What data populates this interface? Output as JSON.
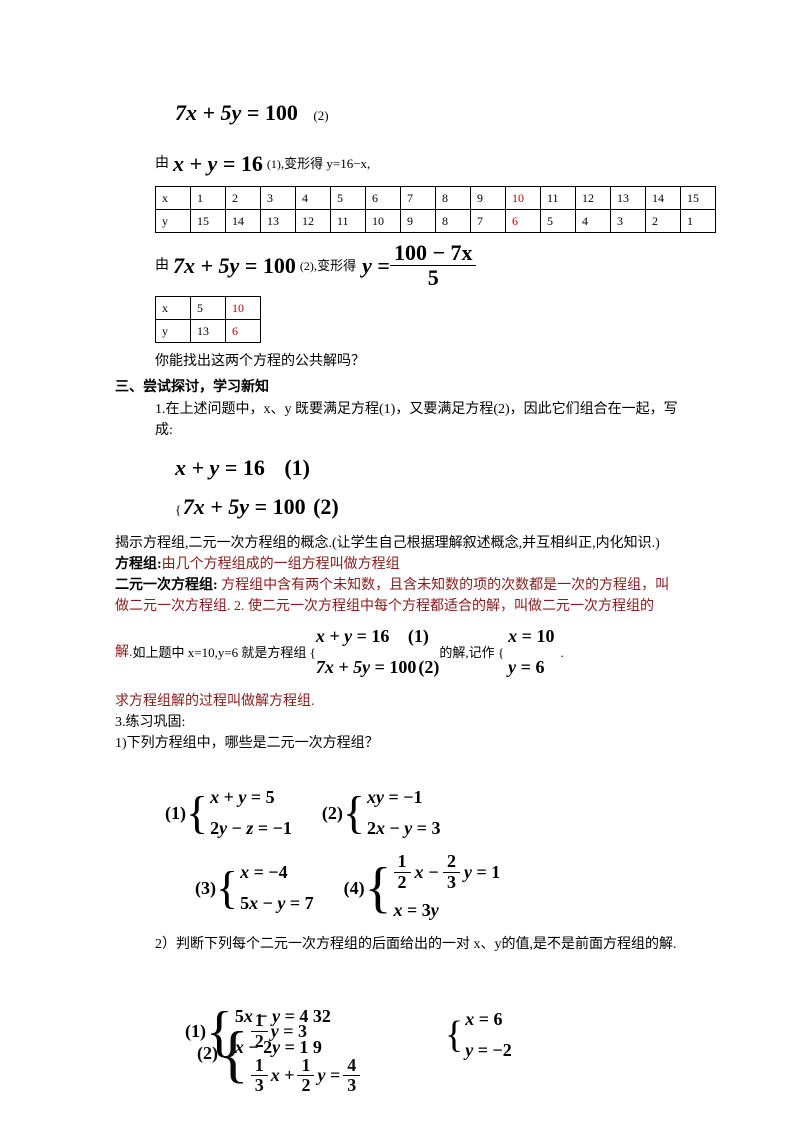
{
  "eq1": {
    "lhs": "7x + 5y",
    "rhs": "100",
    "label": "(2)"
  },
  "line_transform1": {
    "pre": "由",
    "eq_lhs": "x + y",
    "eq_rhs": "16",
    "lbl": "(1)",
    "post": ",变形得 y=16−x,"
  },
  "table1": {
    "header": "x",
    "header2": "y",
    "x": [
      "1",
      "2",
      "3",
      "4",
      "5",
      "6",
      "7",
      "8",
      "9",
      "10",
      "11",
      "12",
      "13",
      "14",
      "15"
    ],
    "y": [
      "15",
      "14",
      "13",
      "12",
      "11",
      "10",
      "9",
      "8",
      "7",
      "6",
      "5",
      "4",
      "3",
      "2",
      "1"
    ],
    "highlight_index": 9
  },
  "line_transform2": {
    "pre": "由",
    "eq_lhs": "7x + 5y",
    "eq_rhs": "100",
    "lbl": "(2)",
    "post": ",变形得",
    "frac_num": "100 − 7x",
    "frac_den": "5",
    "y": "y"
  },
  "table2": {
    "x": [
      "5",
      "10"
    ],
    "y": [
      "13",
      "6"
    ],
    "highlight_index": 1
  },
  "q_common": "你能找出这两个方程的公共解吗？",
  "sec3": "三、尝试探讨，学习新知",
  "p1": "1.在上述问题中，x、y 既要满足方程(1)，又要满足方程(2)，因此它们组合在一起，写成:",
  "sys1": {
    "e1": {
      "lhs": "x + y",
      "rhs": "16",
      "lbl": "(1)"
    },
    "e2": {
      "lhs": "7x + 5y",
      "rhs": "100",
      "lbl": "(2)"
    }
  },
  "reveal": "揭示方程组,二元一次方程组的概念.(让学生自己根据理解叙述概念,并互相纠正,内化知识.)",
  "def1_label": "方程组:",
  "def1_body": "由几个方程组成的一组方程叫做方程组",
  "def2_label": "二元一次方程组:",
  "def2_body": " 方程组中含有两个未知数，且含未知数的项的次数都是一次的方程组，叫做二元一次方程组. 2. 使二元一次方程组中每个方程都适合的解，叫做二元一次方程组的",
  "def2_line2_pre": "解.",
  "def2_line2_mid": "如上题中 x=10,y=6 就是方程组 {",
  "def2_line2_post": " 的解,记作 {",
  "sol": {
    "x": "x",
    "xv": "10",
    "y": "y",
    "yv": "6"
  },
  "def3": "求方程组解的过程叫做解方程组.",
  "prac": "3.练习巩固:",
  "prac_q1": "1)下列方程组中，哪些是二元一次方程组？",
  "opts": {
    "o1": {
      "n": "(1)",
      "a": "x + y = 5",
      "b": "2y − z = −1"
    },
    "o2": {
      "n": "(2)",
      "a": "xy = −1",
      "b": "2x − y = 3"
    },
    "o3": {
      "n": "(3)",
      "a": "x = −4",
      "b": "5x − y = 7"
    },
    "o4": {
      "n": "(4)",
      "a_fr1n": "1",
      "a_fr1d": "2",
      "a_mid": "x −",
      "a_fr2n": "2",
      "a_fr2d": "3",
      "a_end": "y = 1",
      "b": "x = 3y"
    }
  },
  "prac_q2": "2）判断下列每个二元一次方程组的后面给出的一对 x、y的值,是不是前面方程组的解.",
  "bot": {
    "g1": {
      "n": "(1)",
      "a": "5x − y = 4 32",
      "b": "x − 2y = 1 9"
    },
    "g2": {
      "n": "(2)",
      "fr1": "1",
      "fr1d": "2",
      "mid1": "y =",
      "v1": "3",
      "fr2": "1",
      "fr2d": "3",
      "mid2": "x +",
      "fr3": "1",
      "fr3d": "2",
      "mid3": "y =",
      "fr4": "4",
      "fr4d": "3"
    },
    "sol": {
      "x": "x = 6",
      "y": "y = −2"
    }
  },
  "colors": {
    "red": "#c00000"
  }
}
